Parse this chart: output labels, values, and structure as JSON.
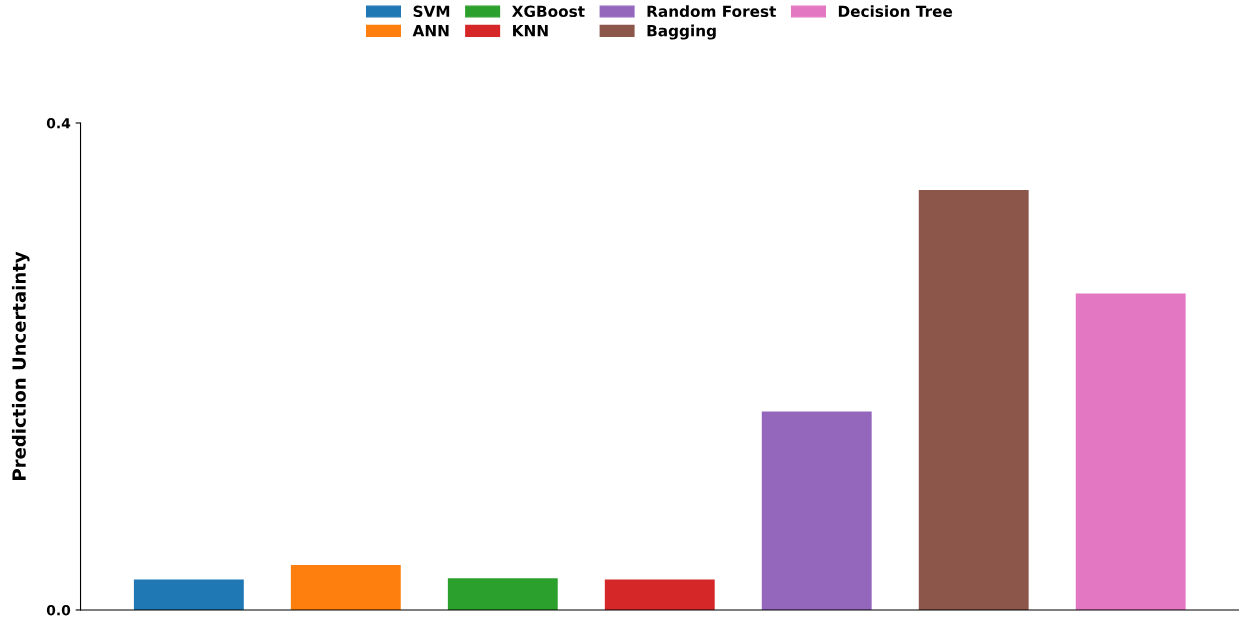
{
  "chart_data": {
    "type": "bar",
    "ylabel": "Prediction Uncertainty",
    "categories": [
      null,
      null,
      null,
      null,
      null,
      null,
      null
    ],
    "series": [
      {
        "name": "SVM",
        "color": "#1f77b4",
        "values": [
          0.025,
          null,
          null,
          null,
          null,
          null,
          null
        ]
      },
      {
        "name": "ANN",
        "color": "#ff7f0e",
        "values": [
          null,
          0.037,
          null,
          null,
          null,
          null,
          null
        ]
      },
      {
        "name": "XGBoost",
        "color": "#2ca02c",
        "values": [
          null,
          null,
          0.026,
          null,
          null,
          null,
          null
        ]
      },
      {
        "name": "KNN",
        "color": "#d62728",
        "values": [
          null,
          null,
          null,
          0.025,
          null,
          null,
          null
        ]
      },
      {
        "name": "Random Forest",
        "color": "#9467bd",
        "values": [
          null,
          null,
          null,
          null,
          0.163,
          null,
          null
        ]
      },
      {
        "name": "Bagging",
        "color": "#8c564b",
        "values": [
          null,
          null,
          null,
          null,
          null,
          0.345,
          null
        ]
      },
      {
        "name": "Decision Tree",
        "color": "#e377c2",
        "values": [
          null,
          null,
          null,
          null,
          null,
          null,
          0.26
        ]
      }
    ],
    "ylim": [
      0,
      0.4
    ],
    "yticks": [
      {
        "value": 0,
        "label": "0.0"
      },
      0.4
    ],
    "legend": "top",
    "tick_labels": "y",
    "grid": false
  }
}
